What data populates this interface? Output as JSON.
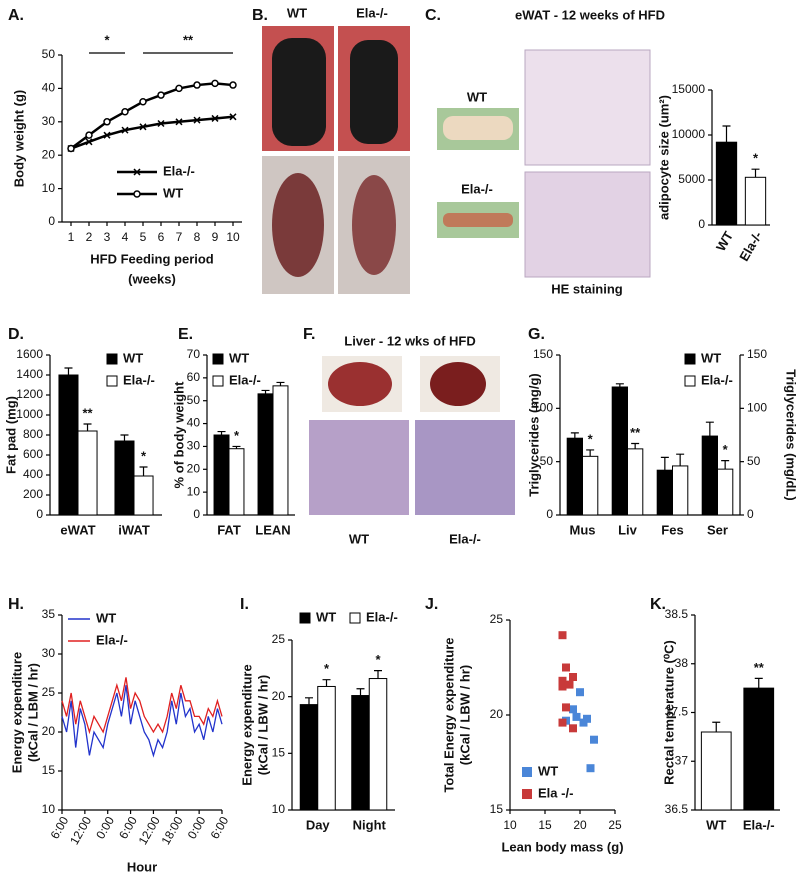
{
  "chart_data": [
    {
      "type": "line",
      "label": "A.",
      "ylabel": "Body weight (g)",
      "xlabel": [
        "HFD Feeding period",
        "(weeks)"
      ],
      "x": [
        1,
        2,
        3,
        4,
        5,
        6,
        7,
        8,
        9,
        10
      ],
      "xlim": [
        0.5,
        10.5
      ],
      "xticks": [
        1,
        2,
        3,
        4,
        5,
        6,
        7,
        8,
        9,
        10
      ],
      "ylim": [
        0,
        50
      ],
      "yticks": [
        0,
        10,
        20,
        30,
        40,
        50
      ],
      "legend": "lower right",
      "series": [
        {
          "name": "Ela-/-",
          "color": "#000000",
          "marker": "x",
          "values": [
            22,
            24,
            26,
            27.5,
            28.5,
            29.5,
            30,
            30.5,
            31,
            31.5
          ]
        },
        {
          "name": "WT",
          "color": "#000000",
          "marker": "circle",
          "values": [
            22,
            26,
            30,
            33,
            36,
            38,
            40,
            41,
            41.5,
            41
          ]
        }
      ],
      "annotations": [
        {
          "text": "*",
          "x": [
            2,
            4
          ]
        },
        {
          "text": "**",
          "x": [
            5,
            10
          ]
        }
      ]
    },
    {
      "type": "bar",
      "ylabel": "adipocyte size  (um²)",
      "categories": [
        "WT",
        "Ela-/-"
      ],
      "values": [
        9200,
        5300
      ],
      "errors": [
        1800,
        900
      ],
      "colors": [
        "#000000",
        "#ffffff"
      ],
      "significance": [
        null,
        "*"
      ],
      "ylim": [
        0,
        15000
      ],
      "yticks": [
        0,
        5000,
        10000,
        15000
      ]
    },
    {
      "type": "bar",
      "label": "D.",
      "ylabel": "Fat pad (mg)",
      "categories": [
        "eWAT",
        "iWAT"
      ],
      "ylim": [
        0,
        1600
      ],
      "yticks": [
        0,
        200,
        400,
        600,
        800,
        1000,
        1200,
        1400,
        1600
      ],
      "legend": "upper right",
      "series": [
        {
          "name": "WT",
          "color": "#000000",
          "values": [
            1400,
            740
          ],
          "errors": [
            70,
            60
          ]
        },
        {
          "name": "Ela-/-",
          "color": "#ffffff",
          "values": [
            840,
            390
          ],
          "errors": [
            70,
            90
          ],
          "significance": [
            "**",
            "*"
          ]
        }
      ]
    },
    {
      "type": "bar",
      "label": "E.",
      "ylabel": "% of body weight",
      "categories": [
        "FAT",
        "LEAN"
      ],
      "ylim": [
        0,
        70
      ],
      "yticks": [
        0,
        10,
        20,
        30,
        40,
        50,
        60,
        70
      ],
      "legend": "upper left",
      "series": [
        {
          "name": "WT",
          "color": "#000000",
          "values": [
            35,
            53
          ],
          "errors": [
            1.5,
            1.5
          ]
        },
        {
          "name": "Ela-/-",
          "color": "#ffffff",
          "values": [
            29,
            56.5
          ],
          "errors": [
            1,
            1.5
          ],
          "significance": [
            "*",
            null
          ]
        }
      ]
    },
    {
      "type": "bar",
      "label": "G.",
      "ylabel": "Triglycerides (mg/g)",
      "y2label": "Triglycerides (mg/dL)",
      "categories": [
        "Mus",
        "Liv",
        "Fes",
        "Ser"
      ],
      "ylim": [
        0,
        150
      ],
      "yticks": [
        0,
        50,
        100,
        150
      ],
      "y2lim": [
        0,
        150
      ],
      "y2ticks": [
        0,
        50,
        100,
        150
      ],
      "legend": "upper right",
      "series": [
        {
          "name": "WT",
          "color": "#000000",
          "values": [
            72,
            120,
            42,
            74
          ],
          "errors": [
            5,
            3,
            12,
            13
          ]
        },
        {
          "name": "Ela-/-",
          "color": "#ffffff",
          "values": [
            55,
            62,
            46,
            43
          ],
          "errors": [
            6,
            5,
            11,
            8
          ],
          "significance": [
            "*",
            "**",
            null,
            "*"
          ]
        }
      ]
    },
    {
      "type": "line",
      "label": "H.",
      "ylabel": [
        "Energy expenditure",
        "(kCal / LBM / hr)"
      ],
      "xlabel": "Hour",
      "x": [
        0,
        1,
        2,
        3,
        4,
        5,
        6,
        7,
        8,
        9,
        10,
        11,
        12,
        13,
        14,
        15,
        16,
        17,
        18,
        19,
        20,
        21,
        22,
        23,
        24,
        25,
        26,
        27,
        28,
        29,
        30,
        31,
        32,
        33,
        34,
        35
      ],
      "xlim": [
        0,
        35
      ],
      "xticks": [
        {
          "value": 0,
          "label": "6:00"
        },
        {
          "value": 5,
          "label": "12:00"
        },
        {
          "value": 10,
          "label": "0:00"
        },
        {
          "value": 15,
          "label": "6:00"
        },
        {
          "value": 20,
          "label": "12:00"
        },
        {
          "value": 25,
          "label": "18:00"
        },
        {
          "value": 30,
          "label": "0:00"
        },
        {
          "value": 35,
          "label": "6:00"
        }
      ],
      "ylim": [
        10,
        35
      ],
      "yticks": [
        10,
        15,
        20,
        25,
        30,
        35
      ],
      "legend": "upper left",
      "series": [
        {
          "name": "WT",
          "color": "#2233cc",
          "values": [
            22,
            20,
            24,
            18,
            23,
            21,
            17,
            20,
            19,
            18,
            21,
            23,
            25,
            22,
            26,
            21,
            24,
            22,
            20,
            19,
            17,
            19,
            18,
            20,
            24,
            21,
            25,
            22,
            23,
            20,
            21,
            19,
            22,
            20,
            23,
            21
          ]
        },
        {
          "name": "Ela-/-",
          "color": "#e02020",
          "values": [
            24,
            22,
            25,
            21,
            24,
            22,
            20,
            22,
            21,
            20,
            22,
            24,
            26,
            24,
            27,
            23,
            25,
            24,
            22,
            21,
            20,
            21,
            20,
            22,
            25,
            23,
            26,
            24,
            24,
            22,
            22,
            21,
            23,
            22,
            24,
            22
          ]
        }
      ]
    },
    {
      "type": "bar",
      "label": "I.",
      "ylabel": [
        "Energy expenditure",
        "(kCal / LBW / hr)"
      ],
      "categories": [
        "Day",
        "Night"
      ],
      "ylim": [
        10,
        25
      ],
      "yticks": [
        10,
        15,
        20,
        25
      ],
      "legend": "above",
      "series": [
        {
          "name": "WT",
          "color": "#000000",
          "values": [
            19.3,
            20.1
          ],
          "errors": [
            0.6,
            0.6
          ]
        },
        {
          "name": "Ela-/-",
          "color": "#ffffff",
          "values": [
            20.9,
            21.6
          ],
          "errors": [
            0.6,
            0.7
          ],
          "significance": [
            "*",
            "*"
          ]
        }
      ]
    },
    {
      "type": "scatter",
      "label": "J.",
      "ylabel": [
        "Total Energy expenditure",
        "(kCal / LBW / hr)"
      ],
      "xlabel": "Lean body mass (g)",
      "xlim": [
        10,
        25
      ],
      "xticks": [
        10,
        15,
        20,
        25
      ],
      "ylim": [
        15,
        25
      ],
      "yticks": [
        15,
        20,
        25
      ],
      "legend": "lower left",
      "series": [
        {
          "name": "WT",
          "color": "#4a86d8",
          "x": [
            20,
            21,
            22,
            21.5,
            19,
            18,
            19.5,
            20.5
          ],
          "values": [
            21.2,
            19.8,
            18.7,
            17.2,
            20.3,
            19.7,
            19.9,
            19.6
          ]
        },
        {
          "name": "Ela -/-",
          "color": "#c83a3a",
          "x": [
            17.5,
            18,
            17.5,
            19,
            18.5,
            17.5,
            18,
            19,
            17.5
          ],
          "values": [
            24.2,
            22.5,
            21.5,
            22,
            21.6,
            19.6,
            20.4,
            19.3,
            21.8
          ]
        }
      ]
    },
    {
      "type": "bar",
      "label": "K.",
      "ylabel": "Rectal temperature (⁰C)",
      "categories": [
        "WT",
        "Ela-/-"
      ],
      "values": [
        37.3,
        37.75
      ],
      "errors": [
        0.1,
        0.1
      ],
      "colors": [
        "#ffffff",
        "#000000"
      ],
      "significance": [
        null,
        "**"
      ],
      "ylim": [
        36.5,
        38.5
      ],
      "yticks": [
        36.5,
        37,
        37.5,
        38,
        38.5
      ]
    }
  ],
  "image_panels": {
    "B": {
      "label": "B.",
      "captions": [
        "WT",
        "Ela-/-"
      ]
    },
    "C": {
      "label": "C.",
      "title": "eWAT - 12 weeks of HFD",
      "rows": [
        "WT",
        "Ela-/-"
      ],
      "caption": "HE staining"
    },
    "F": {
      "label": "F.",
      "title": "Liver - 12 wks of HFD",
      "captions": [
        "WT",
        "Ela-/-"
      ]
    }
  }
}
